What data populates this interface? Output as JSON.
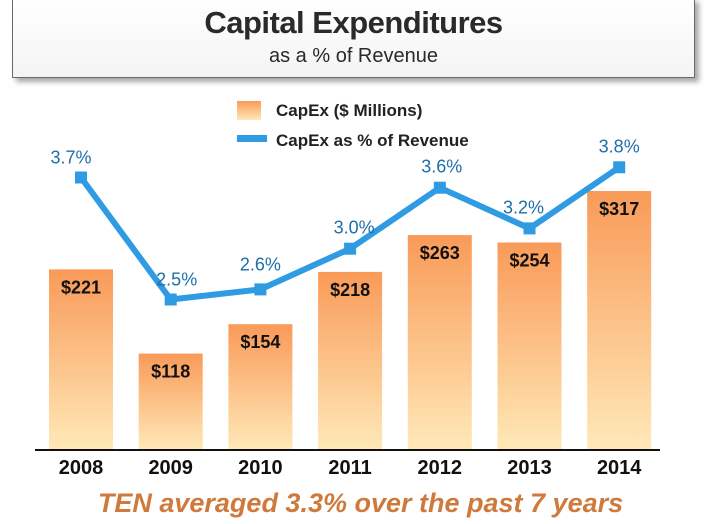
{
  "header": {
    "title": "Capital Expenditures",
    "subtitle": "as a % of Revenue"
  },
  "footer": {
    "text": "TEN averaged 3.3% over the past 7 years"
  },
  "chart_data": {
    "type": "bar",
    "categories": [
      "2008",
      "2009",
      "2010",
      "2011",
      "2012",
      "2013",
      "2014"
    ],
    "series": [
      {
        "name": "CapEx ($ Millions)",
        "type": "bar",
        "values": [
          221,
          118,
          154,
          218,
          263,
          254,
          317
        ],
        "labels": [
          "$221",
          "$118",
          "$154",
          "$218",
          "$263",
          "$254",
          "$317"
        ]
      },
      {
        "name": "CapEx as % of Revenue",
        "type": "line",
        "values": [
          3.7,
          2.5,
          2.6,
          3.0,
          3.6,
          3.2,
          3.8
        ],
        "labels": [
          "3.7%",
          "2.5%",
          "2.6%",
          "3.0%",
          "3.6%",
          "3.2%",
          "3.8%"
        ]
      }
    ],
    "legend_position": "top",
    "grid": false,
    "colors": {
      "bar_top": "#f99a58",
      "bar_bottom": "#ffe9b8",
      "line": "#2e9be3",
      "line_label": "#1d6fa8",
      "axis": "#111111"
    }
  }
}
